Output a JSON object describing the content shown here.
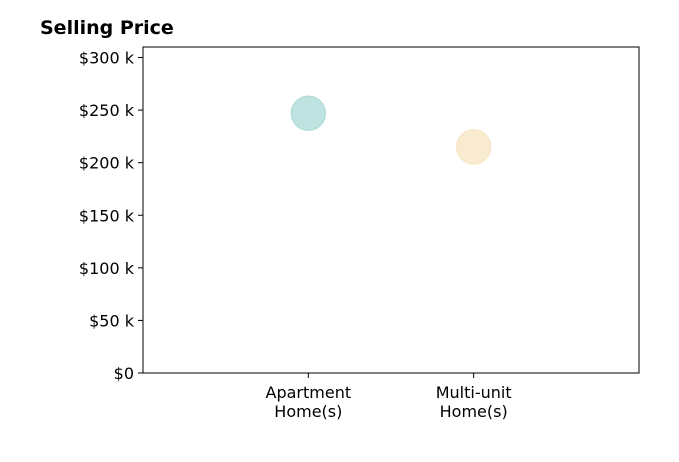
{
  "chart_data": {
    "type": "scatter",
    "title": "Selling Price",
    "xlabel": "",
    "ylabel": "",
    "categories": [
      [
        "Apartment",
        "Home(s)"
      ],
      [
        "Multi-unit",
        "Home(s)"
      ]
    ],
    "points": [
      {
        "category_index": 0,
        "value": 247000,
        "color": "#b3deda"
      },
      {
        "category_index": 1,
        "value": 215000,
        "color": "#f8e8c8"
      }
    ],
    "y_ticks": [
      {
        "value": 0,
        "label": "$0"
      },
      {
        "value": 50000,
        "label": "$50 k"
      },
      {
        "value": 100000,
        "label": "$100 k"
      },
      {
        "value": 150000,
        "label": "$150 k"
      },
      {
        "value": 200000,
        "label": "$200 k"
      },
      {
        "value": 250000,
        "label": "$250 k"
      },
      {
        "value": 300000,
        "label": "$300 k"
      }
    ],
    "ylim": [
      0,
      310000
    ],
    "xlim": [
      -1,
      2
    ],
    "grid": false,
    "legend": "none"
  }
}
